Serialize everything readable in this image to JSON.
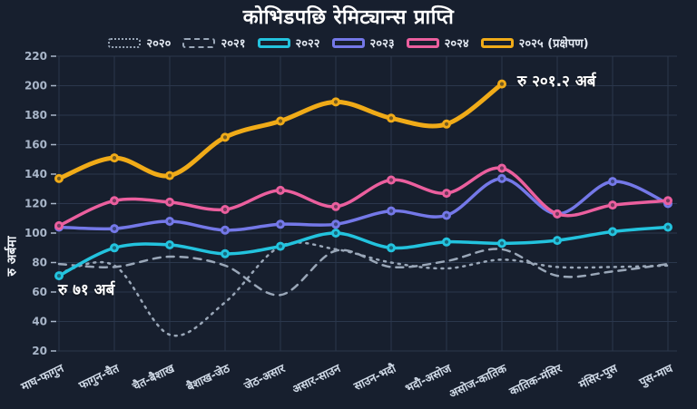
{
  "title": "कोभिडपछि रेमिट्यान्स प्राप्ति",
  "y_axis_label": "रु अर्बमा",
  "annotations": {
    "peak_value_label": "रु २०१.२ अर्ब",
    "start_value_label": "रु ७१ अर्ब"
  },
  "theme": {
    "background": "#171f2e",
    "grid_color": "#2b374c",
    "ytick_color": "#a9b6c9",
    "xtick_color": "#cfd9e6",
    "title_color": "#ffffff",
    "gray_series_color": "#9aa7b8",
    "cyan": "#23c3de",
    "purple": "#7478e8",
    "pink": "#eb5f9e",
    "yellow": "#f0ab18"
  },
  "chart_data": {
    "type": "line",
    "title": "कोभिडपछि रेमिट्यान्स प्राप्ति",
    "ylabel": "रु अर्बमा",
    "ylim": [
      20,
      220
    ],
    "yticks": [
      20,
      40,
      60,
      80,
      100,
      120,
      140,
      160,
      180,
      200,
      220
    ],
    "grid": true,
    "legend_position": "top",
    "categories": [
      "माघ-फागुन",
      "फागुन-चैत",
      "चैत-बैशाख",
      "बैशाख-जेठ",
      "जेठ-असार",
      "असार-साउन",
      "साउन-भदौ",
      "भदौ-असोज",
      "असोज-कातिक",
      "कातिक-मंसिर",
      "मंसिर-पुस",
      "पुस-माघ"
    ],
    "series": [
      {
        "name": "२०२०",
        "color": "#9aa7b8",
        "style": "dotted",
        "width": 2.5,
        "markers": false,
        "values": [
          73,
          78,
          31,
          53,
          91,
          89,
          80,
          76,
          82,
          77,
          77,
          78
        ]
      },
      {
        "name": "२०२१",
        "color": "#9aa7b8",
        "style": "dashed",
        "width": 2.5,
        "markers": false,
        "values": [
          79,
          77,
          84,
          78,
          58,
          88,
          77,
          81,
          89,
          71,
          74,
          79
        ]
      },
      {
        "name": "२०२२",
        "color": "#23c3de",
        "style": "solid",
        "width": 3.5,
        "markers": true,
        "values": [
          71,
          90,
          92,
          86,
          91,
          100,
          90,
          94,
          93,
          95,
          101,
          104
        ]
      },
      {
        "name": "२०२३",
        "color": "#7478e8",
        "style": "solid",
        "width": 3.5,
        "markers": true,
        "values": [
          104,
          103,
          108,
          102,
          106,
          106,
          115,
          112,
          137,
          113,
          135,
          120
        ]
      },
      {
        "name": "२०२४",
        "color": "#eb5f9e",
        "style": "solid",
        "width": 3.5,
        "markers": true,
        "values": [
          105,
          122,
          121,
          116,
          129,
          118,
          136,
          127,
          144,
          113,
          119,
          122
        ]
      },
      {
        "name": "२०२५ (प्रक्षेपण)",
        "color": "#f0ab18",
        "style": "solid",
        "width": 5,
        "markers": true,
        "values": [
          137,
          151,
          139,
          165,
          176,
          189,
          178,
          174,
          201.2,
          null,
          null,
          null
        ]
      }
    ],
    "annotations": [
      {
        "text": "रु २०१.२ अर्ब",
        "series": "२०२५ (प्रक्षेपण)",
        "point": "असोज-कातिक",
        "value": 201.2
      },
      {
        "text": "रु ७१ अर्ब",
        "series": "२०२२",
        "point": "माघ-फागुन",
        "value": 71
      }
    ]
  }
}
